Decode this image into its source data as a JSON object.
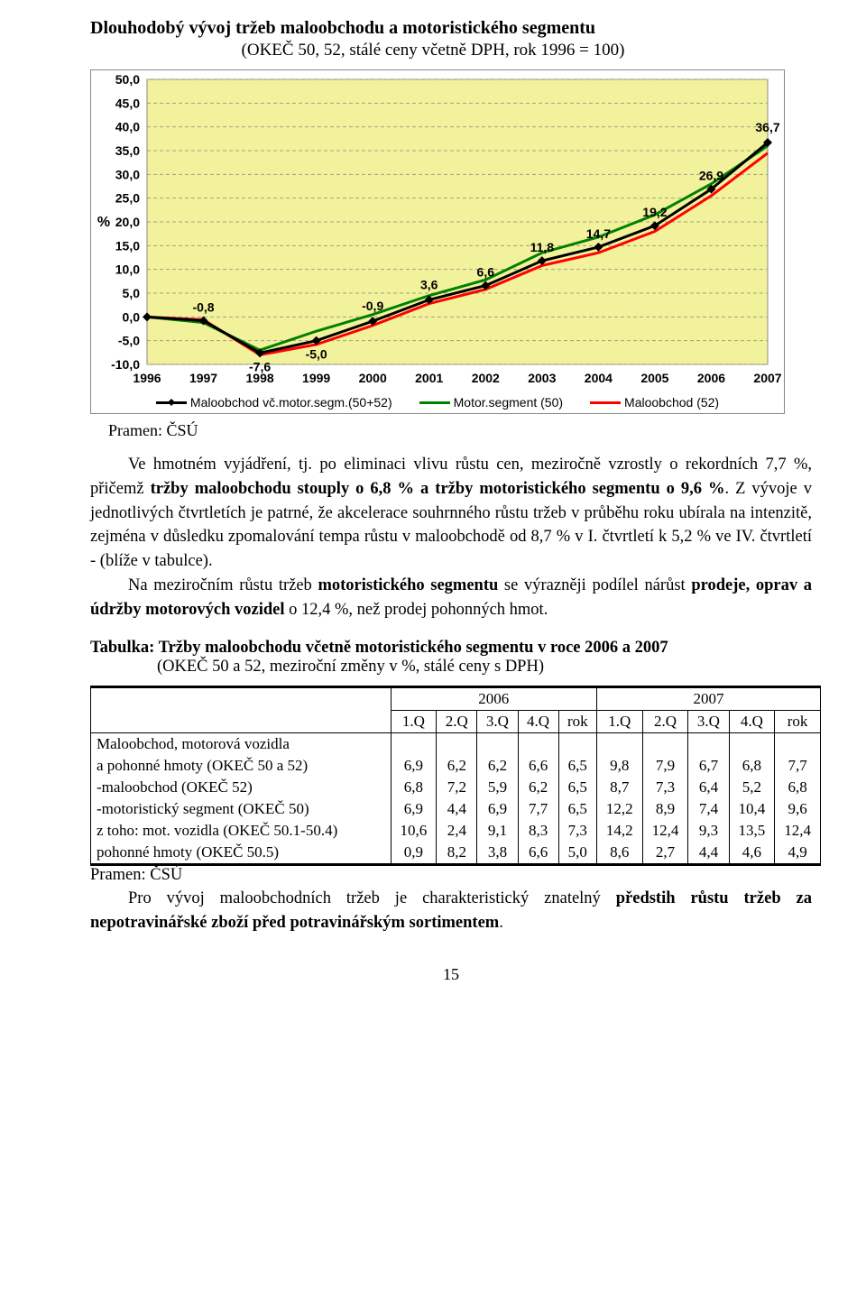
{
  "chart": {
    "title": "Dlouhodobý vývoj tržeb maloobchodu a motoristického segmentu",
    "subtitle": "(OKEČ 50, 52, stálé ceny včetně DPH, rok 1996 = 100)",
    "type": "line",
    "y_label": "%",
    "background_color": "#f3f29c",
    "grid_color": "#a0a080",
    "border_color": "#888888",
    "frame_bg": "#ffffff",
    "y_ticks": [
      "50,0",
      "45,0",
      "40,0",
      "35,0",
      "30,0",
      "25,0",
      "20,0",
      "15,0",
      "10,0",
      "5,0",
      "0,0",
      "-5,0",
      "-10,0"
    ],
    "y_min": -10,
    "y_max": 50,
    "x_labels": [
      "1996",
      "1997",
      "1998",
      "1999",
      "2000",
      "2001",
      "2002",
      "2003",
      "2004",
      "2005",
      "2006",
      "2007"
    ],
    "series": [
      {
        "name": "Maloobchod vč.motor.segm.(50+52)",
        "color": "#000000",
        "marker": "diamond",
        "marker_fill": "#000000",
        "width": 3,
        "values": [
          0,
          -0.8,
          -7.6,
          -5.0,
          -0.9,
          3.6,
          6.6,
          11.8,
          14.7,
          19.2,
          26.9,
          36.7
        ],
        "labels_visible": {
          "1": "-0,8",
          "2": "-7,6",
          "3": "-5,0",
          "4": "-0,9",
          "5": "3,6",
          "6": "6,6",
          "7": "11,8",
          "8": "14,7",
          "9": "19,2",
          "10": "26,9",
          "11": "36,7"
        }
      },
      {
        "name": "Motor.segment (50)",
        "color": "#008000",
        "marker": "none",
        "width": 3,
        "values": [
          0,
          -1.2,
          -7.0,
          -3.0,
          0.5,
          4.5,
          7.8,
          13.5,
          16.8,
          21.5,
          28.0,
          36.0
        ]
      },
      {
        "name": "Maloobchod (52)",
        "color": "#ff0000",
        "marker": "none",
        "width": 3,
        "values": [
          0,
          -0.6,
          -8.0,
          -5.8,
          -1.8,
          2.8,
          5.8,
          10.8,
          13.5,
          18.0,
          25.5,
          34.5
        ]
      }
    ],
    "label_font": "Arial",
    "label_fontsize": 14,
    "label_bold": true,
    "tick_fontsize": 14,
    "legend": [
      "Maloobchod vč.motor.segm.(50+52)",
      "Motor.segment (50)",
      "Maloobchod (52)"
    ]
  },
  "source_label": "Pramen: ČSÚ",
  "paragraphs": {
    "p1_a": "Ve hmotném vyjádření, tj. po eliminaci vlivu růstu cen, meziročně vzrostly o rekordních 7,7 %, přičemž ",
    "p1_b": "tržby maloobchodu stouply o  6,8 % a tržby motoristického segmentu o 9,6 %",
    "p1_c": ". Z vývoje v jednotlivých čtvrtletích je patrné, že akcelerace souhrnného růstu tržeb v průběhu roku ubírala na intenzitě, zejména v důsledku zpomalování tempa růstu v maloobchodě  od 8,7 % v I. čtvrtletí k 5,2 % ve IV. čtvrtletí - (blíže v tabulce).",
    "p2_a": "Na meziročním růstu tržeb ",
    "p2_b": "motoristického segmentu",
    "p2_c": " se výrazněji podílel nárůst ",
    "p2_d": "prodeje, oprav a údržby motorových vozidel",
    "p2_e": " o 12,4 %, než prodej pohonných hmot."
  },
  "table_title": "Tabulka: Tržby maloobchodu včetně motoristického segmentu v roce 2006 a 2007",
  "table_sub": "(OKEČ 50 a 52, meziroční změny v %, stálé ceny s DPH)",
  "table": {
    "year_headers": [
      "2006",
      "2007"
    ],
    "sub_headers": [
      "1.Q",
      "2.Q",
      "3.Q",
      "4.Q",
      "rok",
      "1.Q",
      "2.Q",
      "3.Q",
      "4.Q",
      "rok"
    ],
    "rows": [
      {
        "label_top": "Maloobchod, motorová vozidla",
        "label": "a pohonné hmoty (OKEČ 50 a 52)",
        "values": [
          "6,9",
          "6,2",
          "6,2",
          "6,6",
          "6,5",
          "9,8",
          "7,9",
          "6,7",
          "6,8",
          "7,7"
        ]
      },
      {
        "label": "-maloobchod (OKEČ 52)",
        "values": [
          "6,8",
          "7,2",
          "5,9",
          "6,2",
          "6,5",
          "8,7",
          "7,3",
          "6,4",
          "5,2",
          "6,8"
        ]
      },
      {
        "label": "-motoristický segment (OKEČ 50)",
        "values": [
          "6,9",
          "4,4",
          "6,9",
          "7,7",
          "6,5",
          "12,2",
          "8,9",
          "7,4",
          "10,4",
          "9,6"
        ]
      },
      {
        "label": "   z toho: mot. vozidla (OKEČ 50.1-50.4)",
        "values": [
          "10,6",
          "2,4",
          "9,1",
          "8,3",
          "7,3",
          "14,2",
          "12,4",
          "9,3",
          "13,5",
          "12,4"
        ]
      },
      {
        "label": "               pohonné hmoty (OKEČ 50.5)",
        "values": [
          "0,9",
          "8,2",
          "3,8",
          "6,6",
          "5,0",
          "8,6",
          "2,7",
          "4,4",
          "4,6",
          "4,9"
        ]
      }
    ]
  },
  "source_label2": "Pramen: ČSÚ",
  "p3_a": "Pro  vývoj  maloobchodních  tržeb  je  charakteristický  znatelný  ",
  "p3_b": "předstih růstu tržeb za nepotravinářské zboží před potravinářským sortimentem",
  "p3_c": ".",
  "page_number": "15"
}
